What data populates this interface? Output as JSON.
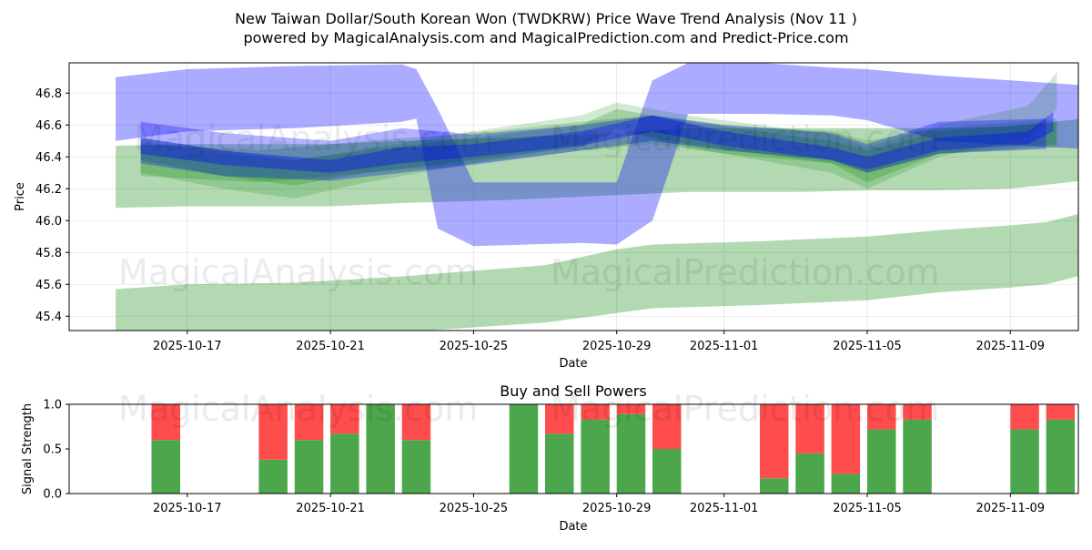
{
  "chart_data": {
    "title_line1": "New Taiwan Dollar/South Korean Won (TWDKRW) Price Wave Trend Analysis (Nov 11 )",
    "title_line2": "powered by MagicalAnalysis.com and MagicalPrediction.com and Predict-Price.com",
    "watermark": {
      "top_left": "MagicalAnalysis.com",
      "top_right": "MagicalPrediction.com",
      "bottom_left": "MagicalAnalysis.com",
      "bottom_right": "MagicalPrediction.com"
    },
    "price_chart": {
      "type": "area",
      "xlabel": "Date",
      "ylabel": "Price",
      "xlim_days": [
        -3.3,
        24.9
      ],
      "ylim": [
        45.31,
        46.99
      ],
      "yticks": [
        45.4,
        45.6,
        45.8,
        46.0,
        46.2,
        46.4,
        46.6,
        46.8
      ],
      "ytick_labels": [
        "45.4",
        "45.6",
        "45.8",
        "46.0",
        "46.2",
        "46.4",
        "46.6",
        "46.8"
      ],
      "xtick_days": [
        0,
        4,
        8,
        12,
        15,
        19,
        23
      ],
      "xtick_labels": [
        "2025-10-17",
        "2025-10-21",
        "2025-10-25",
        "2025-10-29",
        "2025-11-01",
        "2025-11-05",
        "2025-11-09"
      ],
      "grid": true,
      "colors": {
        "blue": "#0000ff",
        "green": "#008000"
      },
      "series": [
        {
          "name": "blue-wave-wide",
          "color": "#0000ff",
          "points": [
            [
              -2,
              46.9,
              46.5
            ],
            [
              0,
              46.95,
              46.56
            ],
            [
              3,
              46.97,
              46.58
            ],
            [
              6,
              46.98,
              46.62
            ],
            [
              6.4,
              46.95,
              46.64
            ],
            [
              7,
              46.7,
              45.95
            ],
            [
              8,
              46.24,
              45.84
            ],
            [
              11,
              46.24,
              45.86
            ],
            [
              12,
              46.24,
              45.85
            ],
            [
              13,
              46.88,
              46.0
            ],
            [
              14,
              46.99,
              46.67
            ],
            [
              16,
              46.99,
              46.67
            ],
            [
              18,
              46.96,
              46.66
            ],
            [
              19,
              46.95,
              46.63
            ],
            [
              21,
              46.91,
              46.5
            ],
            [
              25,
              46.85,
              46.45
            ]
          ]
        },
        {
          "name": "blue-wave-mid",
          "color": "#0000ff",
          "points": [
            [
              -1.3,
              46.62,
              46.36
            ],
            [
              1,
              46.55,
              46.28
            ],
            [
              4,
              46.5,
              46.25
            ],
            [
              6,
              46.58,
              46.3
            ],
            [
              8,
              46.54,
              46.35
            ],
            [
              11,
              46.6,
              46.44
            ],
            [
              13,
              46.66,
              46.5
            ],
            [
              15,
              46.6,
              46.44
            ],
            [
              18,
              46.55,
              46.38
            ],
            [
              19,
              46.48,
              46.3
            ],
            [
              21,
              46.62,
              46.42
            ],
            [
              24,
              46.64,
              46.45
            ]
          ]
        },
        {
          "name": "blue-wave-narrow",
          "color": "#0000ff",
          "points": [
            [
              -1.3,
              46.52,
              46.42
            ],
            [
              1,
              46.44,
              46.35
            ],
            [
              4,
              46.38,
              46.3
            ],
            [
              6,
              46.46,
              46.36
            ],
            [
              8,
              46.48,
              46.4
            ],
            [
              11,
              46.56,
              46.47
            ],
            [
              13,
              46.66,
              46.56
            ],
            [
              15,
              46.56,
              46.47
            ],
            [
              18,
              46.46,
              46.38
            ],
            [
              19,
              46.4,
              46.32
            ],
            [
              21,
              46.52,
              46.44
            ],
            [
              23.5,
              46.56,
              46.48
            ],
            [
              24.2,
              46.68,
              46.56
            ]
          ]
        },
        {
          "name": "green-wave-tight",
          "color": "#008000",
          "points": [
            [
              -1.3,
              46.52,
              46.38
            ],
            [
              1,
              46.44,
              46.28
            ],
            [
              3,
              46.38,
              46.22
            ],
            [
              5,
              46.44,
              46.3
            ],
            [
              8,
              46.52,
              46.38
            ],
            [
              11,
              46.6,
              46.46
            ],
            [
              12,
              46.7,
              46.56
            ],
            [
              14,
              46.62,
              46.48
            ],
            [
              18,
              46.5,
              46.36
            ],
            [
              19,
              46.44,
              46.24
            ],
            [
              21,
              46.56,
              46.42
            ],
            [
              24.3,
              46.62,
              46.48
            ]
          ]
        },
        {
          "name": "green-wave-loose",
          "color": "#008000",
          "points": [
            [
              -1.3,
              46.5,
              46.3
            ],
            [
              1,
              46.42,
              46.2
            ],
            [
              3,
              46.38,
              46.14
            ],
            [
              5,
              46.45,
              46.24
            ],
            [
              8,
              46.56,
              46.36
            ],
            [
              11,
              46.66,
              46.48
            ],
            [
              12,
              46.74,
              46.58
            ],
            [
              14,
              46.66,
              46.46
            ],
            [
              18,
              46.54,
              46.3
            ],
            [
              19,
              46.46,
              46.2
            ],
            [
              21,
              46.6,
              46.4
            ],
            [
              23.5,
              46.72,
              46.52
            ],
            [
              24.3,
              46.93,
              46.7
            ]
          ]
        },
        {
          "name": "green-wave-mid",
          "color": "#008000",
          "points": [
            [
              -1.3,
              46.48,
              46.28
            ],
            [
              2,
              46.44,
              46.24
            ],
            [
              5,
              46.5,
              46.3
            ],
            [
              8,
              46.55,
              46.36
            ],
            [
              11,
              46.62,
              46.44
            ],
            [
              13,
              46.66,
              46.48
            ],
            [
              15,
              46.6,
              46.42
            ],
            [
              18,
              46.56,
              46.36
            ],
            [
              19,
              46.5,
              46.3
            ],
            [
              21,
              46.58,
              46.42
            ],
            [
              24.3,
              46.64,
              46.46
            ]
          ]
        },
        {
          "name": "green-band-upper",
          "color": "#008000",
          "points": [
            [
              -2,
              46.47,
              46.08
            ],
            [
              0,
              46.48,
              46.09
            ],
            [
              4,
              46.48,
              46.09
            ],
            [
              6,
              46.5,
              46.11
            ],
            [
              9,
              46.52,
              46.13
            ],
            [
              12,
              46.55,
              46.16
            ],
            [
              14,
              46.58,
              46.18
            ],
            [
              17,
              46.58,
              46.18
            ],
            [
              19,
              46.58,
              46.19
            ],
            [
              21,
              46.58,
              46.19
            ],
            [
              23,
              46.59,
              46.2
            ],
            [
              25,
              46.64,
              46.25
            ]
          ]
        },
        {
          "name": "green-band-lower",
          "color": "#008000",
          "points": [
            [
              -2,
              45.57,
              45.3
            ],
            [
              0,
              45.6,
              45.3
            ],
            [
              3,
              45.61,
              45.3
            ],
            [
              6,
              45.65,
              45.3
            ],
            [
              10,
              45.72,
              45.36
            ],
            [
              12,
              45.82,
              45.42
            ],
            [
              13,
              45.85,
              45.45
            ],
            [
              16,
              45.87,
              45.47
            ],
            [
              18,
              45.89,
              45.49
            ],
            [
              19,
              45.9,
              45.5
            ],
            [
              21,
              45.94,
              45.55
            ],
            [
              23,
              45.97,
              45.58
            ],
            [
              24,
              45.99,
              45.6
            ],
            [
              25.4,
              46.07,
              45.68
            ],
            [
              25.9,
              45.72,
              45.72
            ]
          ]
        }
      ]
    },
    "power_chart": {
      "type": "bar",
      "title": "Buy and Sell Powers",
      "xlabel": "Date",
      "ylabel": "Signal Strength",
      "xlim_days": [
        -3.3,
        24.9
      ],
      "ylim": [
        0,
        1
      ],
      "yticks": [
        0,
        0.5,
        1.0
      ],
      "ytick_labels": [
        "0.0",
        "0.5",
        "1.0"
      ],
      "xtick_days": [
        0,
        4,
        8,
        12,
        15,
        19,
        23
      ],
      "xtick_labels": [
        "2025-10-17",
        "2025-10-21",
        "2025-10-25",
        "2025-10-29",
        "2025-11-01",
        "2025-11-05",
        "2025-11-09"
      ],
      "colors": {
        "buy": "#4ca64c",
        "sell": "#ff4c4c"
      },
      "series": [
        {
          "name": "Buy Power",
          "color": "#4ca64c"
        },
        {
          "name": "Sell Power",
          "color": "#ff4c4c"
        }
      ],
      "bars": [
        {
          "day": -0.6,
          "buy": 0.6
        },
        {
          "day": 2.4,
          "buy": 0.38
        },
        {
          "day": 3.4,
          "buy": 0.6
        },
        {
          "day": 4.4,
          "buy": 0.67
        },
        {
          "day": 5.4,
          "buy": 1.0
        },
        {
          "day": 6.4,
          "buy": 0.6
        },
        {
          "day": 9.4,
          "buy": 1.0
        },
        {
          "day": 10.4,
          "buy": 0.67
        },
        {
          "day": 11.4,
          "buy": 0.83
        },
        {
          "day": 12.4,
          "buy": 0.89
        },
        {
          "day": 13.4,
          "buy": 0.5
        },
        {
          "day": 16.4,
          "buy": 0.17
        },
        {
          "day": 17.4,
          "buy": 0.45
        },
        {
          "day": 18.4,
          "buy": 0.22
        },
        {
          "day": 19.4,
          "buy": 0.72
        },
        {
          "day": 20.4,
          "buy": 0.83
        },
        {
          "day": 23.4,
          "buy": 0.72
        },
        {
          "day": 24.4,
          "buy": 0.83
        }
      ]
    }
  }
}
